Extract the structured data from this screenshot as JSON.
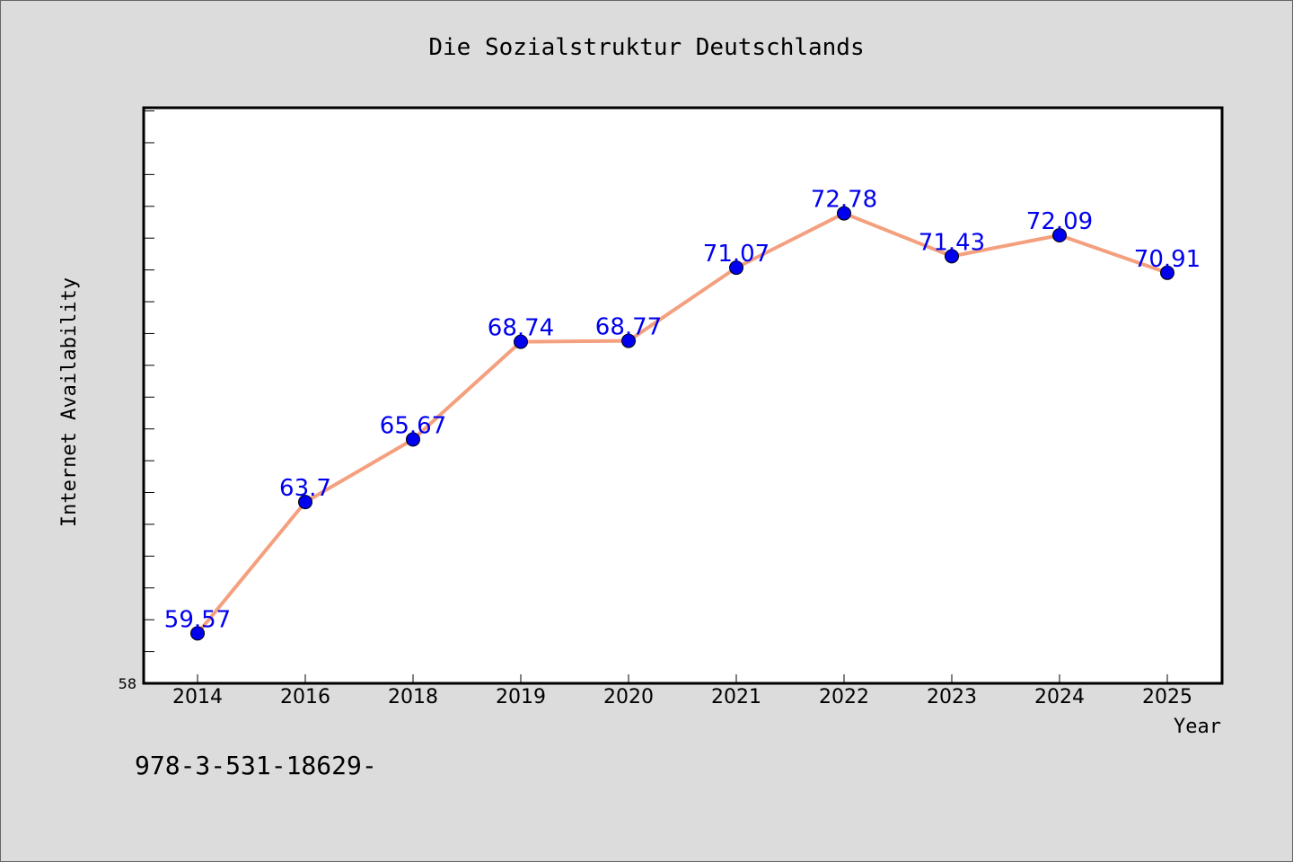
{
  "chart_data": {
    "type": "line",
    "title": "Die Sozialstruktur Deutschlands",
    "xlabel": "Year",
    "ylabel": "Internet Availability",
    "categories": [
      "2014",
      "2016",
      "2018",
      "2019",
      "2020",
      "2021",
      "2022",
      "2023",
      "2024",
      "2025"
    ],
    "values": [
      59.57,
      63.7,
      65.67,
      68.74,
      68.77,
      71.07,
      72.78,
      71.43,
      72.09,
      70.91
    ],
    "data_labels": [
      "59.57",
      "63.7",
      "65.67",
      "68.74",
      "68.77",
      "71.07",
      "72.78",
      "71.43",
      "72.09",
      "70.91"
    ],
    "y_tick_labels": [
      {
        "value": 58,
        "label": "58"
      }
    ],
    "ylim": [
      58,
      76.1
    ],
    "y_minor_tick_step": 1,
    "grid": false,
    "legend": "none",
    "line_color": "#f4a07e",
    "marker_color": "#0000ee",
    "label_color": "#0000ee"
  },
  "footer": {
    "text": "978-3-531-18629-"
  }
}
